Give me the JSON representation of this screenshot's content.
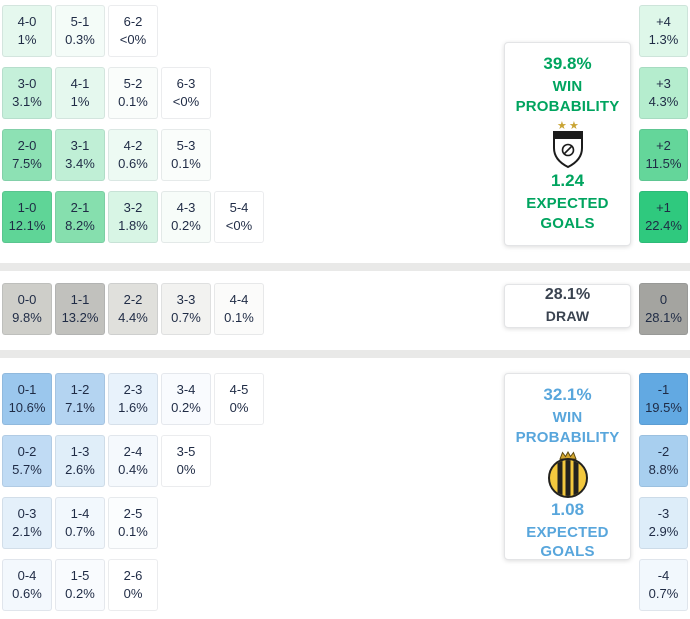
{
  "colors": {
    "home_accent": "#00a45f",
    "away_accent": "#58a6dc",
    "draw_accent": "#3a4350",
    "cell_text": "#1f2b45",
    "separator": "#e9e9e8",
    "panel_border": "#e3e4e6"
  },
  "icons": {
    "home_logo": "home-team-crest-icon",
    "away_logo": "away-team-crest-icon"
  },
  "chart_data": {
    "type": "heatmap",
    "title": "Correct score probability matrix with win/draw probabilities, goal margins and expected goals",
    "home": {
      "panel": {
        "win_pct": "39.8%",
        "win_label": "WIN PROBABILITY",
        "xg": "1.24",
        "xg_label": "EXPECTED GOALS"
      },
      "rows": [
        [
          {
            "score": "4-0",
            "pct": "1%",
            "bg": "#e5f8ee"
          },
          {
            "score": "5-1",
            "pct": "0.3%",
            "bg": "#f4fcf8"
          },
          {
            "score": "6-2",
            "pct": "<0%",
            "bg": "#ffffff"
          }
        ],
        [
          {
            "score": "3-0",
            "pct": "3.1%",
            "bg": "#c5f0da"
          },
          {
            "score": "4-1",
            "pct": "1%",
            "bg": "#e5f8ee"
          },
          {
            "score": "5-2",
            "pct": "0.1%",
            "bg": "#fafdfb"
          },
          {
            "score": "6-3",
            "pct": "<0%",
            "bg": "#ffffff"
          }
        ],
        [
          {
            "score": "2-0",
            "pct": "7.5%",
            "bg": "#8de1b4"
          },
          {
            "score": "3-1",
            "pct": "3.4%",
            "bg": "#c0efd6"
          },
          {
            "score": "4-2",
            "pct": "0.6%",
            "bg": "#edfaf3"
          },
          {
            "score": "5-3",
            "pct": "0.1%",
            "bg": "#fafdfb"
          }
        ],
        [
          {
            "score": "1-0",
            "pct": "12.1%",
            "bg": "#5fd597"
          },
          {
            "score": "2-1",
            "pct": "8.2%",
            "bg": "#86dfae"
          },
          {
            "score": "3-2",
            "pct": "1.8%",
            "bg": "#d8f5e5"
          },
          {
            "score": "4-3",
            "pct": "0.2%",
            "bg": "#f7fcf9"
          },
          {
            "score": "5-4",
            "pct": "<0%",
            "bg": "#ffffff"
          }
        ]
      ],
      "margins": [
        {
          "label": "+4",
          "pct": "1.3%",
          "bg": "#def7e9"
        },
        {
          "label": "+3",
          "pct": "4.3%",
          "bg": "#b5edce"
        },
        {
          "label": "+2",
          "pct": "11.5%",
          "bg": "#64d69a"
        },
        {
          "label": "+1",
          "pct": "22.4%",
          "bg": "#2fc97e"
        }
      ]
    },
    "draw": {
      "panel": {
        "pct": "28.1%",
        "label": "DRAW"
      },
      "rows": [
        [
          {
            "score": "0-0",
            "pct": "9.8%",
            "bg": "#cecec9"
          },
          {
            "score": "1-1",
            "pct": "13.2%",
            "bg": "#c1c1bd"
          },
          {
            "score": "2-2",
            "pct": "4.4%",
            "bg": "#e0e0dc"
          },
          {
            "score": "3-3",
            "pct": "0.7%",
            "bg": "#f2f2f0"
          },
          {
            "score": "4-4",
            "pct": "0.1%",
            "bg": "#fbfbfa"
          }
        ]
      ],
      "margins": [
        {
          "label": "0",
          "pct": "28.1%",
          "bg": "#a4a4a0"
        }
      ]
    },
    "away": {
      "panel": {
        "win_pct": "32.1%",
        "win_label": "WIN PROBABILITY",
        "xg": "1.08",
        "xg_label": "EXPECTED GOALS"
      },
      "rows": [
        [
          {
            "score": "0-1",
            "pct": "10.6%",
            "bg": "#9bc7ed"
          },
          {
            "score": "1-2",
            "pct": "7.1%",
            "bg": "#b4d4f1"
          },
          {
            "score": "2-3",
            "pct": "1.6%",
            "bg": "#e8f2fb"
          },
          {
            "score": "3-4",
            "pct": "0.2%",
            "bg": "#f9fbfe"
          },
          {
            "score": "4-5",
            "pct": "0%",
            "bg": "#ffffff"
          }
        ],
        [
          {
            "score": "0-2",
            "pct": "5.7%",
            "bg": "#c0dbf4"
          },
          {
            "score": "1-3",
            "pct": "2.6%",
            "bg": "#e0eef9"
          },
          {
            "score": "2-4",
            "pct": "0.4%",
            "bg": "#f5f9fd"
          },
          {
            "score": "3-5",
            "pct": "0%",
            "bg": "#ffffff"
          }
        ],
        [
          {
            "score": "0-3",
            "pct": "2.1%",
            "bg": "#e4f0fa"
          },
          {
            "score": "1-4",
            "pct": "0.7%",
            "bg": "#f2f8fd"
          },
          {
            "score": "2-5",
            "pct": "0.1%",
            "bg": "#fbfdfe"
          }
        ],
        [
          {
            "score": "0-4",
            "pct": "0.6%",
            "bg": "#f3f8fd"
          },
          {
            "score": "1-5",
            "pct": "0.2%",
            "bg": "#f9fbfe"
          },
          {
            "score": "2-6",
            "pct": "0%",
            "bg": "#ffffff"
          }
        ]
      ],
      "margins": [
        {
          "label": "-1",
          "pct": "19.5%",
          "bg": "#62a9e2"
        },
        {
          "label": "-2",
          "pct": "8.8%",
          "bg": "#a8cfef"
        },
        {
          "label": "-3",
          "pct": "2.9%",
          "bg": "#ddedf9"
        },
        {
          "label": "-4",
          "pct": "0.7%",
          "bg": "#f2f8fd"
        }
      ]
    }
  }
}
